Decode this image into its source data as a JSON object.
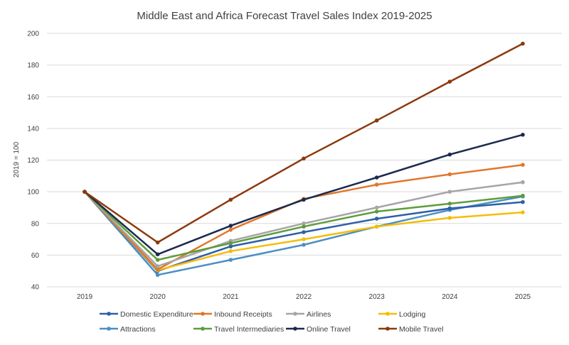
{
  "chart_data": {
    "type": "line",
    "title": "Middle East and Africa Forecast Travel Sales Index 2019-2025",
    "xlabel": "",
    "ylabel": "2019 = 100",
    "x": [
      "2019",
      "2020",
      "2021",
      "2022",
      "2023",
      "2024",
      "2025"
    ],
    "yticks": [
      "40",
      "60",
      "80",
      "100",
      "120",
      "140",
      "160",
      "180",
      "200"
    ],
    "ylim": [
      40,
      200
    ],
    "grid": true,
    "legend_position": "bottom",
    "series": [
      {
        "name": "Domestic Expenditure",
        "color": "#2e5fa8",
        "values": [
          100,
          50,
          65.5,
          74.5,
          83,
          89.5,
          93.5
        ]
      },
      {
        "name": "Inbound Receipts",
        "color": "#e0772b",
        "values": [
          100,
          51,
          76,
          95.5,
          104.5,
          111,
          117
        ]
      },
      {
        "name": "Airlines",
        "color": "#a5a5a5",
        "values": [
          100,
          53,
          69,
          80,
          90,
          100,
          106
        ]
      },
      {
        "name": "Lodging",
        "color": "#f5bd0a",
        "values": [
          100,
          50.5,
          62.5,
          70,
          78,
          83.5,
          87
        ]
      },
      {
        "name": "Attractions",
        "color": "#4a8fc4",
        "values": [
          100,
          47.5,
          57,
          66.5,
          78,
          88.5,
          97
        ]
      },
      {
        "name": "Travel Intermediaries",
        "color": "#5d9d3a",
        "values": [
          100,
          57,
          67.5,
          78,
          87.5,
          92.5,
          97.5
        ]
      },
      {
        "name": "Online Travel",
        "color": "#1b2a4e",
        "values": [
          100,
          60.5,
          78.5,
          95,
          109,
          123.5,
          136
        ]
      },
      {
        "name": "Mobile Travel",
        "color": "#8b3a0c",
        "values": [
          100,
          68,
          95,
          121,
          145,
          169.5,
          193.5
        ]
      }
    ]
  }
}
